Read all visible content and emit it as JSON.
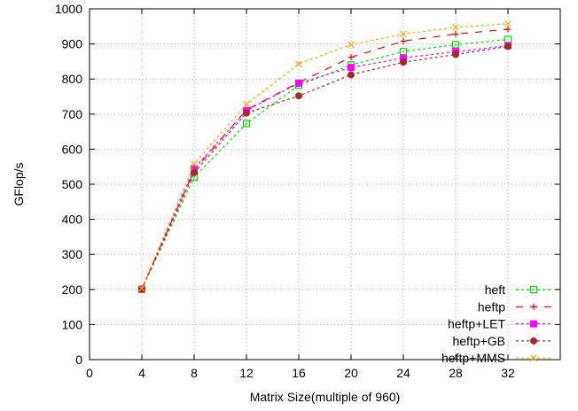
{
  "chart_data": {
    "type": "line",
    "title": "",
    "xlabel": "Matrix Size(multiple of 960)",
    "ylabel": "GFlop/s",
    "xlim": [
      0,
      36
    ],
    "ylim": [
      0,
      1000
    ],
    "xticks": [
      0,
      4,
      8,
      12,
      16,
      20,
      24,
      28,
      32
    ],
    "yticks": [
      0,
      100,
      200,
      300,
      400,
      500,
      600,
      700,
      800,
      900,
      1000
    ],
    "grid": true,
    "legend_position": "bottom-right",
    "x": [
      4,
      8,
      12,
      16,
      20,
      24,
      28,
      32
    ],
    "series": [
      {
        "name": "heft",
        "color": "#00dd00",
        "marker": "square-open",
        "dash": "3,3",
        "values": [
          200,
          520,
          673,
          782,
          840,
          878,
          898,
          913
        ]
      },
      {
        "name": "heftp",
        "color": "#ee0000",
        "marker": "plus",
        "dash": "8,8",
        "values": [
          202,
          540,
          712,
          790,
          862,
          908,
          928,
          942
        ]
      },
      {
        "name": "heftp+LET",
        "color": "#ff00ff",
        "marker": "square-filled",
        "dash": "3,3",
        "values": [
          201,
          545,
          710,
          788,
          833,
          860,
          878,
          895
        ]
      },
      {
        "name": "heftp+GB",
        "color": "#a52a2a",
        "marker": "circle-filled",
        "dash": "3,3",
        "values": [
          201,
          533,
          703,
          752,
          812,
          848,
          870,
          893
        ]
      },
      {
        "name": "heftp+MMS",
        "color": "#ffa500",
        "marker": "cross",
        "dash": "3,3",
        "values": [
          203,
          558,
          728,
          843,
          898,
          928,
          947,
          958
        ]
      }
    ]
  }
}
